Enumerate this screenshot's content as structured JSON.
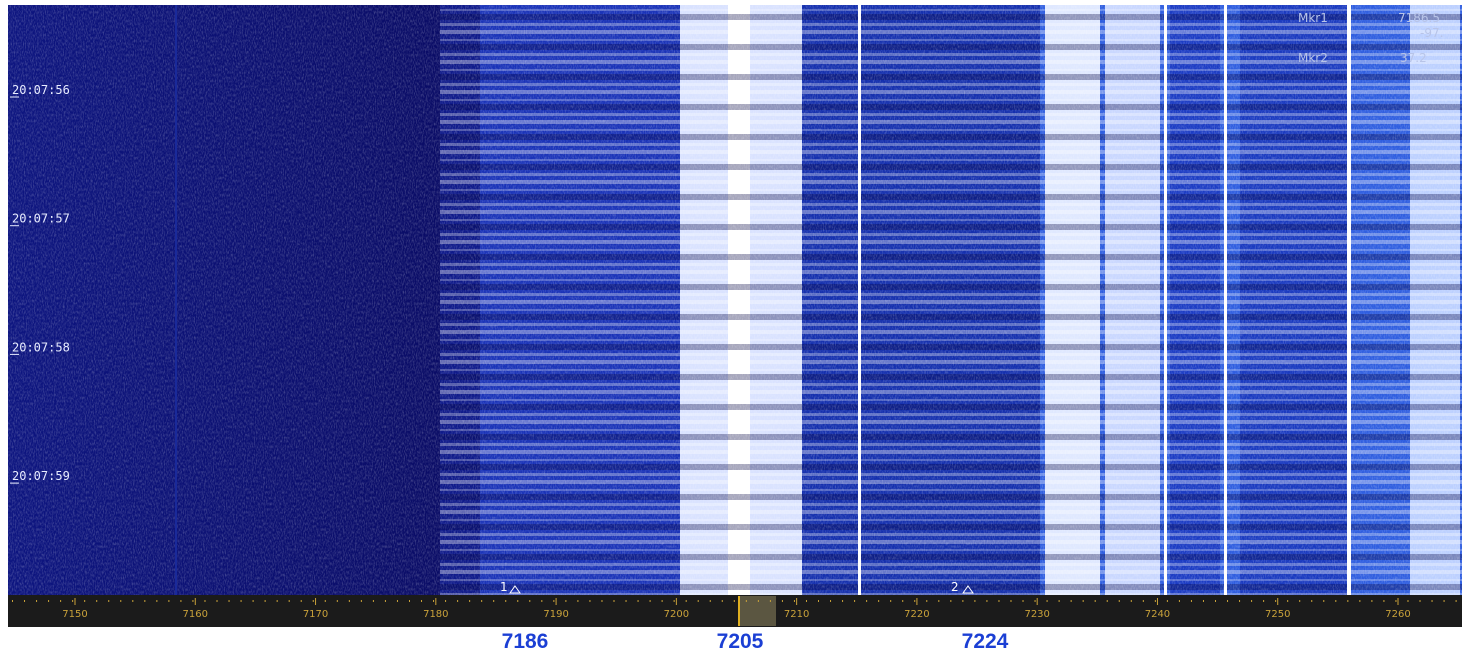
{
  "time_labels": [
    "20:07:56",
    "20:07:57",
    "20:07:58",
    "20:07:59"
  ],
  "frequency_axis": {
    "ticks": [
      7150,
      7160,
      7170,
      7180,
      7190,
      7200,
      7210,
      7220,
      7230,
      7240,
      7250,
      7260
    ]
  },
  "markers": {
    "marker_1": "1",
    "marker_2": "2"
  },
  "marker_readout": {
    "mkr1_name": "Mkr1",
    "mkr1_freq": "7186.5",
    "mkr1_level": "-97.",
    "mkr2_name": "Mkr2",
    "mkr2_value": "37.2"
  },
  "frequency_labels": [
    "7186",
    "7205",
    "7224"
  ]
}
